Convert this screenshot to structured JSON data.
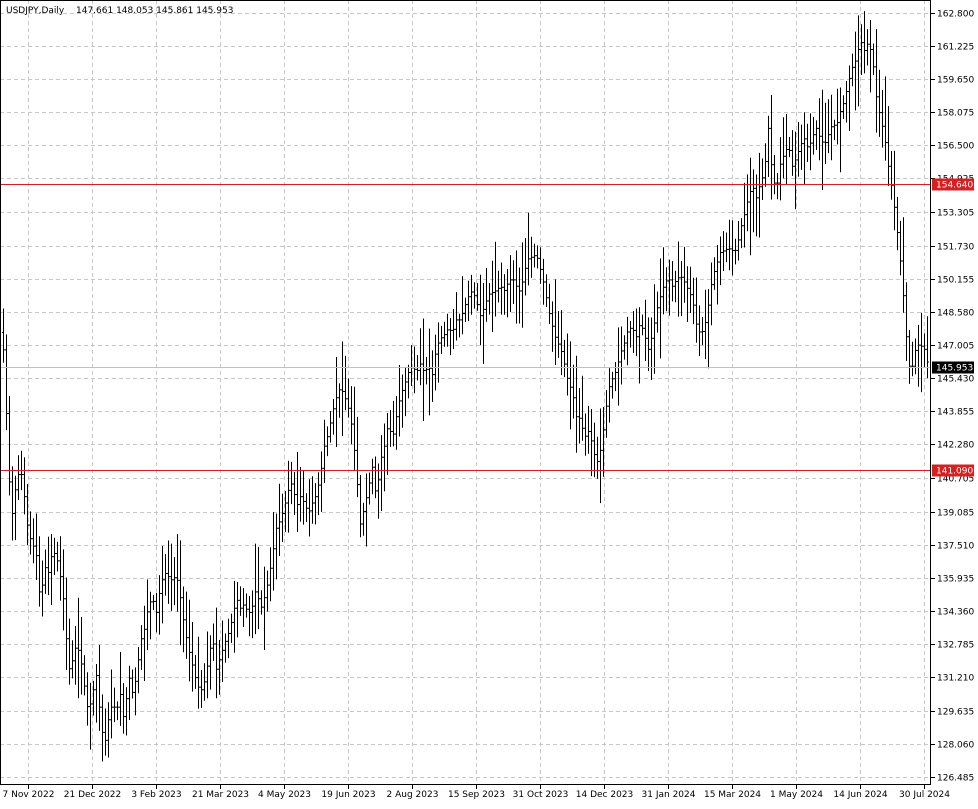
{
  "header": {
    "symbol": "USDJPY,Daily",
    "ohlc": "147.661 148.053 145.861 145.953"
  },
  "chart_data": {
    "type": "ohlc",
    "title": "USDJPY,Daily",
    "ylim": [
      126.1,
      163.4
    ],
    "y_ticks": [
      "162.800",
      "161.225",
      "159.650",
      "158.075",
      "156.500",
      "154.925",
      "153.305",
      "151.730",
      "150.155",
      "148.580",
      "147.005",
      "145.430",
      "143.855",
      "142.280",
      "140.705",
      "139.085",
      "137.510",
      "135.935",
      "134.360",
      "132.785",
      "131.210",
      "129.635",
      "128.060",
      "126.485"
    ],
    "x_labels": [
      "7 Nov 2022",
      "21 Dec 2022",
      "3 Feb 2023",
      "21 Mar 2023",
      "4 May 2023",
      "19 Jun 2023",
      "2 Aug 2023",
      "15 Sep 2023",
      "31 Oct 2023",
      "14 Dec 2023",
      "31 Jan 2024",
      "15 Mar 2024",
      "1 May 2024",
      "14 Jun 2024",
      "30 Jul 2024"
    ],
    "horizontal_lines": [
      {
        "label": "154.640",
        "value": 154.64,
        "color": "#d42020"
      },
      {
        "label": "141.090",
        "value": 141.09,
        "color": "#d42020"
      }
    ],
    "current_price": {
      "label": "145.953",
      "value": 145.953,
      "color": "#000000"
    },
    "grid": true,
    "path": [
      [
        0,
        147.6
      ],
      [
        4,
        146.5
      ],
      [
        8,
        141.0
      ],
      [
        12,
        139.0
      ],
      [
        16,
        140.5
      ],
      [
        20,
        141.2
      ],
      [
        24,
        139.8
      ],
      [
        28,
        138.0
      ],
      [
        32,
        137.6
      ],
      [
        36,
        137.0
      ],
      [
        40,
        134.7
      ],
      [
        44,
        136.5
      ],
      [
        48,
        136.2
      ],
      [
        52,
        137.2
      ],
      [
        56,
        137.0
      ],
      [
        60,
        136.0
      ],
      [
        64,
        134.6
      ],
      [
        68,
        131.5
      ],
      [
        72,
        132.0
      ],
      [
        76,
        132.8
      ],
      [
        80,
        132.2
      ],
      [
        84,
        130.8
      ],
      [
        88,
        129.5
      ],
      [
        92,
        130.4
      ],
      [
        96,
        131.3
      ],
      [
        100,
        129.3
      ],
      [
        104,
        127.9
      ],
      [
        108,
        129.2
      ],
      [
        112,
        130.0
      ],
      [
        116,
        129.6
      ],
      [
        120,
        130.4
      ],
      [
        124,
        129.0
      ],
      [
        128,
        131.4
      ],
      [
        132,
        130.5
      ],
      [
        136,
        131.2
      ],
      [
        140,
        132.9
      ],
      [
        144,
        133.5
      ],
      [
        148,
        134.6
      ],
      [
        152,
        135.0
      ],
      [
        156,
        134.3
      ],
      [
        160,
        135.5
      ],
      [
        164,
        136.2
      ],
      [
        168,
        136.0
      ],
      [
        172,
        135.8
      ],
      [
        176,
        136.1
      ],
      [
        180,
        135.0
      ],
      [
        184,
        133.6
      ],
      [
        188,
        132.6
      ],
      [
        192,
        131.8
      ],
      [
        196,
        131.0
      ],
      [
        200,
        130.5
      ],
      [
        204,
        131.0
      ],
      [
        208,
        132.0
      ],
      [
        212,
        133.2
      ],
      [
        216,
        131.6
      ],
      [
        220,
        132.2
      ],
      [
        224,
        132.8
      ],
      [
        228,
        133.3
      ],
      [
        232,
        134.0
      ],
      [
        236,
        135.0
      ],
      [
        240,
        134.5
      ],
      [
        244,
        134.7
      ],
      [
        248,
        134.2
      ],
      [
        252,
        134.6
      ],
      [
        256,
        135.5
      ],
      [
        260,
        134.4
      ],
      [
        264,
        135.0
      ],
      [
        268,
        135.8
      ],
      [
        272,
        137.0
      ],
      [
        276,
        138.3
      ],
      [
        280,
        138.7
      ],
      [
        284,
        139.3
      ],
      [
        288,
        140.1
      ],
      [
        292,
        140.5
      ],
      [
        296,
        139.3
      ],
      [
        300,
        139.8
      ],
      [
        304,
        139.5
      ],
      [
        308,
        139.0
      ],
      [
        312,
        139.5
      ],
      [
        316,
        139.9
      ],
      [
        320,
        140.8
      ],
      [
        324,
        142.2
      ],
      [
        328,
        142.8
      ],
      [
        332,
        143.8
      ],
      [
        336,
        144.5
      ],
      [
        340,
        145.0
      ],
      [
        344,
        144.6
      ],
      [
        348,
        144.0
      ],
      [
        352,
        143.0
      ],
      [
        356,
        141.0
      ],
      [
        360,
        138.5
      ],
      [
        364,
        139.3
      ],
      [
        368,
        140.2
      ],
      [
        372,
        141.2
      ],
      [
        376,
        139.7
      ],
      [
        380,
        141.5
      ],
      [
        384,
        142.2
      ],
      [
        388,
        143.3
      ],
      [
        392,
        142.5
      ],
      [
        396,
        143.6
      ],
      [
        400,
        144.6
      ],
      [
        404,
        145.1
      ],
      [
        408,
        145.7
      ],
      [
        412,
        146.0
      ],
      [
        416,
        145.7
      ],
      [
        420,
        146.1
      ],
      [
        424,
        145.7
      ],
      [
        428,
        146.0
      ],
      [
        432,
        145.6
      ],
      [
        436,
        146.9
      ],
      [
        440,
        147.3
      ],
      [
        444,
        147.5
      ],
      [
        448,
        147.8
      ],
      [
        452,
        147.6
      ],
      [
        456,
        148.2
      ],
      [
        460,
        148.2
      ],
      [
        464,
        148.8
      ],
      [
        468,
        149.3
      ],
      [
        472,
        149.6
      ],
      [
        476,
        149.1
      ],
      [
        480,
        148.4
      ],
      [
        484,
        148.8
      ],
      [
        488,
        149.4
      ],
      [
        492,
        149.5
      ],
      [
        496,
        149.6
      ],
      [
        500,
        149.8
      ],
      [
        504,
        149.6
      ],
      [
        508,
        150.0
      ],
      [
        512,
        150.2
      ],
      [
        516,
        149.8
      ],
      [
        520,
        149.5
      ],
      [
        524,
        150.5
      ],
      [
        528,
        151.1
      ],
      [
        532,
        151.2
      ],
      [
        536,
        151.3
      ],
      [
        540,
        150.6
      ],
      [
        544,
        149.8
      ],
      [
        548,
        148.7
      ],
      [
        552,
        147.9
      ],
      [
        556,
        147.2
      ],
      [
        560,
        146.9
      ],
      [
        564,
        146.1
      ],
      [
        568,
        145.2
      ],
      [
        572,
        144.8
      ],
      [
        576,
        143.6
      ],
      [
        580,
        143.5
      ],
      [
        584,
        142.6
      ],
      [
        588,
        142.9
      ],
      [
        592,
        142.3
      ],
      [
        596,
        141.3
      ],
      [
        600,
        142.0
      ],
      [
        604,
        143.3
      ],
      [
        608,
        144.9
      ],
      [
        612,
        145.4
      ],
      [
        616,
        145.8
      ],
      [
        620,
        146.6
      ],
      [
        624,
        147.1
      ],
      [
        628,
        147.8
      ],
      [
        632,
        147.8
      ],
      [
        636,
        147.4
      ],
      [
        640,
        148.1
      ],
      [
        644,
        147.5
      ],
      [
        648,
        146.8
      ],
      [
        652,
        147.5
      ],
      [
        656,
        148.6
      ],
      [
        660,
        149.3
      ],
      [
        664,
        149.9
      ],
      [
        668,
        150.2
      ],
      [
        672,
        149.8
      ],
      [
        676,
        150.1
      ],
      [
        680,
        150.3
      ],
      [
        684,
        150.0
      ],
      [
        688,
        149.6
      ],
      [
        692,
        149.2
      ],
      [
        696,
        148.0
      ],
      [
        700,
        147.5
      ],
      [
        704,
        147.8
      ],
      [
        708,
        148.9
      ],
      [
        712,
        150.2
      ],
      [
        716,
        150.8
      ],
      [
        720,
        151.4
      ],
      [
        724,
        151.5
      ],
      [
        728,
        151.6
      ],
      [
        732,
        151.5
      ],
      [
        736,
        151.5
      ],
      [
        740,
        152.5
      ],
      [
        744,
        153.2
      ],
      [
        748,
        154.0
      ],
      [
        752,
        154.6
      ],
      [
        756,
        154.0
      ],
      [
        760,
        154.7
      ],
      [
        764,
        155.2
      ],
      [
        768,
        157.3
      ],
      [
        772,
        155.0
      ],
      [
        776,
        154.4
      ],
      [
        780,
        155.6
      ],
      [
        784,
        156.1
      ],
      [
        788,
        156.5
      ],
      [
        792,
        155.5
      ],
      [
        796,
        155.9
      ],
      [
        800,
        156.5
      ],
      [
        804,
        156.8
      ],
      [
        808,
        156.3
      ],
      [
        812,
        156.9
      ],
      [
        816,
        157.3
      ],
      [
        820,
        156.8
      ],
      [
        824,
        156.5
      ],
      [
        828,
        157.0
      ],
      [
        832,
        157.5
      ],
      [
        836,
        157.4
      ],
      [
        840,
        158.1
      ],
      [
        844,
        158.6
      ],
      [
        848,
        159.5
      ],
      [
        852,
        160.2
      ],
      [
        856,
        160.6
      ],
      [
        860,
        161.5
      ],
      [
        864,
        161.0
      ],
      [
        868,
        161.4
      ],
      [
        872,
        160.7
      ],
      [
        876,
        158.8
      ],
      [
        880,
        157.8
      ],
      [
        884,
        157.0
      ],
      [
        888,
        155.5
      ],
      [
        892,
        154.3
      ],
      [
        896,
        152.8
      ],
      [
        900,
        151.0
      ],
      [
        904,
        148.8
      ],
      [
        908,
        146.0
      ],
      [
        912,
        146.0
      ],
      [
        916,
        147.0
      ],
      [
        920,
        147.0
      ],
      [
        924,
        146.8
      ],
      [
        928,
        146.0
      ]
    ]
  }
}
